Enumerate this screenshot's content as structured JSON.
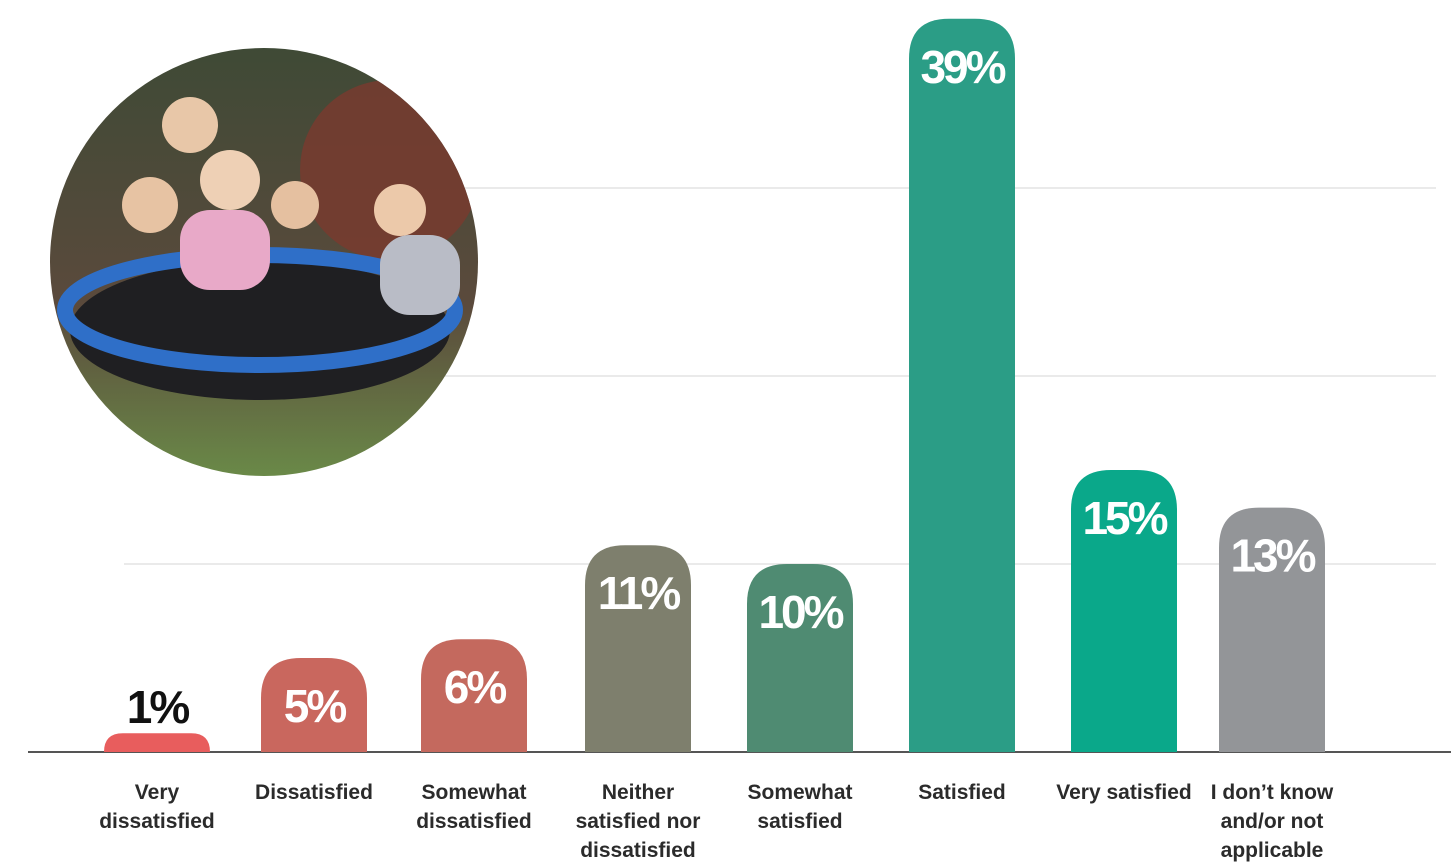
{
  "chart_data": {
    "type": "bar",
    "categories": [
      "Very dissatisfied",
      "Dissatisfied",
      "Somewhat dissatisfied",
      "Neither satisfied nor dissatisfied",
      "Somewhat satisfied",
      "Satisfied",
      "Very satisfied",
      "I don’t know and/or not applicable"
    ],
    "values": [
      1,
      5,
      6,
      11,
      10,
      39,
      15,
      13
    ],
    "value_labels": [
      "1%",
      "5%",
      "6%",
      "11%",
      "10%",
      "39%",
      "15%",
      "13%"
    ],
    "colors": [
      "#e85d5d",
      "#c9675e",
      "#c4695e",
      "#7e7f6d",
      "#4f8b72",
      "#2b9d86",
      "#0aa88a",
      "#939598"
    ],
    "ylim": [
      0,
      40
    ],
    "yticks": [
      10,
      20,
      30
    ],
    "grid": true
  }
}
